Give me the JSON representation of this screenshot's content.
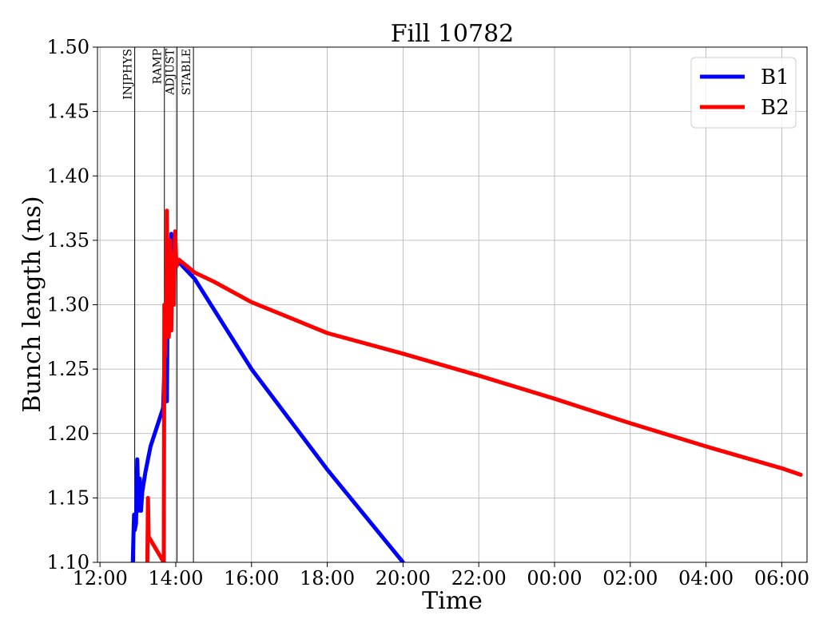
{
  "chart_data": {
    "type": "line",
    "title": "Fill 10782",
    "xlabel": "Time",
    "ylabel": "Bunch length (ns)",
    "xlim": [
      "12:00",
      "06:30"
    ],
    "ylim": [
      1.1,
      1.5
    ],
    "grid": true,
    "legend_position": "top-right",
    "x_ticks": [
      "12:00",
      "14:00",
      "16:00",
      "18:00",
      "20:00",
      "22:00",
      "00:00",
      "02:00",
      "04:00",
      "06:00"
    ],
    "y_ticks": [
      "1.10",
      "1.15",
      "1.20",
      "1.25",
      "1.30",
      "1.35",
      "1.40",
      "1.45",
      "1.50"
    ],
    "phases": [
      {
        "label": "INJPHYS",
        "time": "12:55"
      },
      {
        "label": "RAMP",
        "time": "13:42"
      },
      {
        "label": "ADJUST",
        "time": "14:02"
      },
      {
        "label": "STABLE",
        "time": "14:28"
      }
    ],
    "series": [
      {
        "name": "B1",
        "color": "#0000ff",
        "points": [
          [
            "12:52",
            1.1
          ],
          [
            "12:53",
            1.12
          ],
          [
            "12:54",
            1.137
          ],
          [
            "12:55",
            1.125
          ],
          [
            "12:57",
            1.13
          ],
          [
            "12:59",
            1.18
          ],
          [
            "13:01",
            1.14
          ],
          [
            "13:03",
            1.165
          ],
          [
            "13:05",
            1.14
          ],
          [
            "13:07",
            1.155
          ],
          [
            "13:12",
            1.17
          ],
          [
            "13:20",
            1.19
          ],
          [
            "13:30",
            1.205
          ],
          [
            "13:40",
            1.22
          ],
          [
            "13:42",
            1.25
          ],
          [
            "13:43",
            1.295
          ],
          [
            "13:44",
            1.26
          ],
          [
            "13:46",
            1.225
          ],
          [
            "13:47",
            1.29
          ],
          [
            "13:49",
            1.31
          ],
          [
            "13:51",
            1.305
          ],
          [
            "13:53",
            1.355
          ],
          [
            "13:55",
            1.33
          ],
          [
            "13:57",
            1.35
          ],
          [
            "13:59",
            1.34
          ],
          [
            "14:01",
            1.33
          ],
          [
            "14:05",
            1.333
          ],
          [
            "14:30",
            1.32
          ],
          [
            "16:00",
            1.25
          ],
          [
            "18:00",
            1.172
          ],
          [
            "20:00",
            1.1
          ]
        ]
      },
      {
        "name": "B2",
        "color": "#ff0000",
        "points": [
          [
            "13:15",
            1.1
          ],
          [
            "13:16",
            1.15
          ],
          [
            "13:17",
            1.12
          ],
          [
            "13:41",
            1.1
          ],
          [
            "13:42",
            1.3
          ],
          [
            "13:43",
            1.26
          ],
          [
            "13:44",
            1.29
          ],
          [
            "13:45",
            1.28
          ],
          [
            "13:46",
            1.373
          ],
          [
            "13:47",
            1.3
          ],
          [
            "13:48",
            1.33
          ],
          [
            "13:49",
            1.275
          ],
          [
            "13:51",
            1.35
          ],
          [
            "13:53",
            1.28
          ],
          [
            "13:55",
            1.34
          ],
          [
            "13:57",
            1.3
          ],
          [
            "13:59",
            1.357
          ],
          [
            "14:01",
            1.33
          ],
          [
            "14:05",
            1.335
          ],
          [
            "14:30",
            1.325
          ],
          [
            "15:00",
            1.318
          ],
          [
            "16:00",
            1.302
          ],
          [
            "17:00",
            1.29
          ],
          [
            "18:00",
            1.278
          ],
          [
            "20:00",
            1.262
          ],
          [
            "22:00",
            1.245
          ],
          [
            "00:00",
            1.227
          ],
          [
            "02:00",
            1.208
          ],
          [
            "04:00",
            1.19
          ],
          [
            "06:00",
            1.173
          ],
          [
            "06:30",
            1.168
          ]
        ]
      }
    ]
  }
}
